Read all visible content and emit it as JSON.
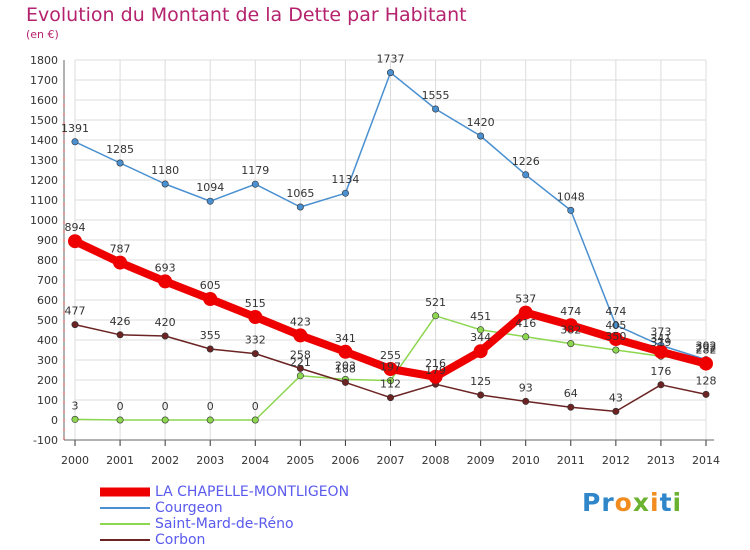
{
  "title": "Evolution du Montant de la Dette par Habitant",
  "subtitle": "(en €)",
  "brand": "Proxiti",
  "chart_data": {
    "type": "line",
    "categories": [
      "2000",
      "2001",
      "2002",
      "2003",
      "2004",
      "2005",
      "2006",
      "2007",
      "2008",
      "2009",
      "2010",
      "2011",
      "2012",
      "2013",
      "2014"
    ],
    "ylim": [
      -100,
      1800
    ],
    "yticks": [
      -100,
      0,
      100,
      200,
      300,
      400,
      500,
      600,
      700,
      800,
      900,
      1000,
      1100,
      1200,
      1300,
      1400,
      1500,
      1600,
      1700,
      1800
    ],
    "grid": true,
    "legend_position": "bottom-left",
    "series": [
      {
        "name": "LA CHAPELLE-MONTLIGEON",
        "color": "#ee0000",
        "values": [
          894,
          787,
          693,
          605,
          515,
          423,
          341,
          255,
          216,
          344,
          537,
          474,
          405,
          341,
          282
        ]
      },
      {
        "name": "Courgeon",
        "color": "#4a90d0",
        "values": [
          1391,
          1285,
          1180,
          1094,
          1179,
          1065,
          1134,
          1737,
          1555,
          1420,
          1226,
          1048,
          474,
          373,
          302
        ]
      },
      {
        "name": "Saint-Mard-de-Réno",
        "color": "#8cd650",
        "values": [
          3,
          0,
          0,
          0,
          0,
          221,
          203,
          197,
          521,
          451,
          416,
          382,
          350,
          319,
          292
        ]
      },
      {
        "name": "Corbon",
        "color": "#6b2323",
        "values": [
          477,
          426,
          420,
          355,
          332,
          258,
          188,
          112,
          179,
          125,
          93,
          64,
          43,
          176,
          128
        ]
      }
    ],
    "data_labels": [
      {
        "series": "LA CHAPELLE-MONTLIGEON",
        "texts": [
          "894",
          "787",
          "693",
          "605",
          "515",
          "423",
          "341",
          "255",
          "216",
          "344",
          "537",
          "474",
          "405",
          "341",
          "282"
        ]
      },
      {
        "series": "Courgeon",
        "texts": [
          "1391",
          "1285",
          "1180",
          "1094",
          "1179",
          "1065",
          "1134",
          "1737",
          "1555",
          "1420",
          "1226",
          "1048",
          "474",
          "373",
          "302"
        ]
      },
      {
        "series": "Saint-Mard-de-Réno",
        "texts": [
          "3",
          "0",
          "0",
          "0",
          "0",
          "221",
          "203",
          "197",
          "521",
          "451",
          "416",
          "382",
          "350",
          "319",
          "292"
        ]
      },
      {
        "series": "Corbon",
        "texts": [
          "477",
          "426",
          "420",
          "355",
          "332",
          "258",
          "188",
          "112",
          "179",
          "125",
          "93",
          "64",
          "43",
          "176",
          "128"
        ]
      }
    ]
  }
}
